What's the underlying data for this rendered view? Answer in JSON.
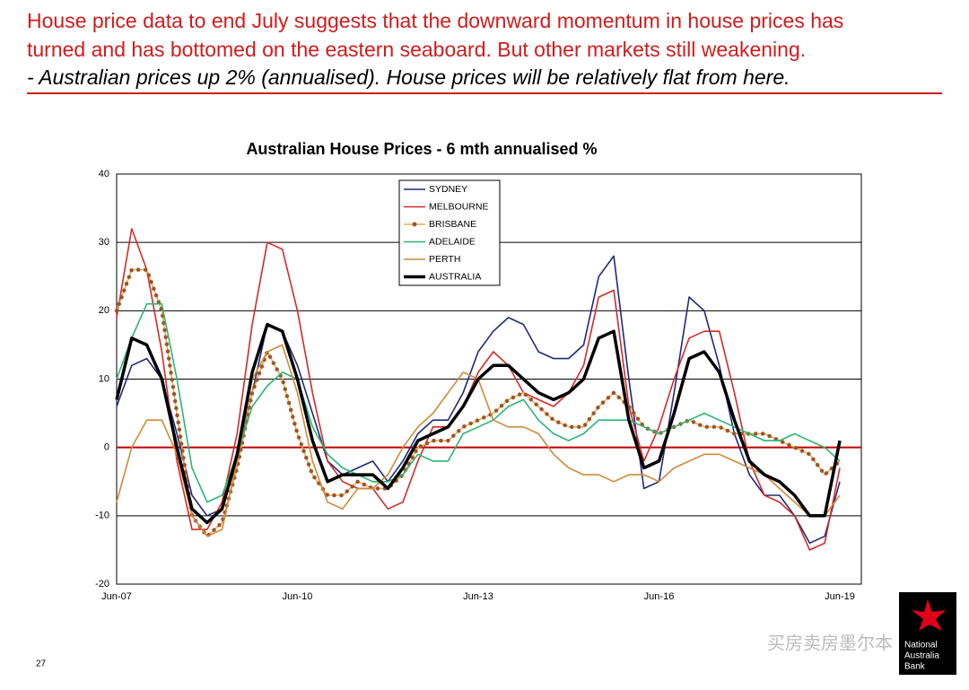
{
  "header": {
    "lines": [
      "House price data to end July suggests that the downward momentum in house prices has",
      "turned and has bottomed on the eastern seaboard.  But other markets still weakening."
    ],
    "subline": "- Australian prices up 2% (annualised). House prices will be relatively flat from here."
  },
  "page_number": "27",
  "watermark": "买房卖房墨尔本",
  "logo": [
    "National",
    "Australia",
    "Bank"
  ],
  "chart_data": {
    "type": "line",
    "title": "Australian House Prices - 6 mth annualised %",
    "categories": [
      "Jun-07",
      null,
      null,
      null,
      null,
      null,
      null,
      null,
      null,
      null,
      null,
      null,
      "Jun-10",
      null,
      null,
      null,
      null,
      null,
      null,
      null,
      null,
      null,
      null,
      null,
      "Jun-13",
      null,
      null,
      null,
      null,
      null,
      null,
      null,
      null,
      null,
      null,
      null,
      "Jun-16",
      null,
      null,
      null,
      null,
      null,
      null,
      null,
      null,
      null,
      null,
      null,
      "Jun-19"
    ],
    "series": [
      {
        "name": "SYDNEY",
        "color": "#1f2a7a",
        "values": [
          6,
          12,
          13,
          10,
          2,
          -7,
          -10,
          -9,
          -2,
          8,
          18,
          17,
          12,
          5,
          -2,
          -4,
          -3,
          -2,
          -5,
          -2,
          2,
          4,
          4,
          8,
          14,
          17,
          19,
          18,
          14,
          13,
          13,
          15,
          25,
          28,
          10,
          -6,
          -5,
          8,
          22,
          20,
          12,
          2,
          -4,
          -7,
          -7,
          -10,
          -14,
          -13,
          -5
        ]
      },
      {
        "name": "MELBOURNE",
        "color": "#d42a2a",
        "values": [
          19,
          32,
          26,
          14,
          -2,
          -12,
          -12,
          -8,
          2,
          18,
          30,
          29,
          20,
          8,
          -2,
          -5,
          -6,
          -6,
          -9,
          -8,
          -2,
          3,
          3,
          6,
          11,
          14,
          12,
          8,
          7,
          6,
          8,
          12,
          22,
          23,
          6,
          -2,
          3,
          10,
          16,
          17,
          17,
          8,
          -2,
          -7,
          -8,
          -10,
          -15,
          -14,
          -3
        ]
      },
      {
        "name": "BRISBANE",
        "color": "#d9b84a",
        "dot_color": "#a0522d",
        "style": "dotted",
        "values": [
          20,
          26,
          26,
          20,
          5,
          -10,
          -13,
          -11,
          -3,
          8,
          14,
          10,
          2,
          -4,
          -7,
          -7,
          -5,
          -6,
          -6,
          -4,
          0,
          1,
          1,
          3,
          4,
          5,
          7,
          8,
          6,
          4,
          3,
          3,
          6,
          8,
          6,
          3,
          2,
          3,
          4,
          3,
          3,
          2,
          2,
          2,
          1,
          0,
          -1,
          -4,
          -2
        ]
      },
      {
        "name": "ADELAIDE",
        "color": "#2bb673",
        "values": [
          10,
          16,
          21,
          21,
          10,
          -3,
          -8,
          -7,
          -1,
          6,
          9,
          11,
          10,
          3,
          -1,
          -3,
          -4,
          -5,
          -5,
          -4,
          -1,
          -2,
          -2,
          2,
          3,
          4,
          6,
          7,
          4,
          2,
          1,
          2,
          4,
          4,
          4,
          3,
          2,
          3,
          4,
          5,
          4,
          3,
          2,
          1,
          1,
          2,
          1,
          0,
          -2
        ]
      },
      {
        "name": "PERTH",
        "color": "#d08a3a",
        "values": [
          -8,
          0,
          4,
          4,
          -1,
          -10,
          -13,
          -12,
          -2,
          10,
          14,
          15,
          8,
          -2,
          -8,
          -9,
          -6,
          -6,
          -4,
          0,
          3,
          5,
          8,
          11,
          10,
          4,
          3,
          3,
          2,
          -1,
          -3,
          -4,
          -4,
          -5,
          -4,
          -4,
          -5,
          -3,
          -2,
          -1,
          -1,
          -2,
          -3,
          -4,
          -6,
          -8,
          -10,
          -10,
          -7
        ]
      },
      {
        "name": "AUSTRALIA",
        "color": "#000000",
        "linewidth": 3.5,
        "values": [
          7,
          16,
          15,
          10,
          0,
          -9,
          -11,
          -9,
          -1,
          11,
          18,
          17,
          10,
          1,
          -5,
          -4,
          -4,
          -4,
          -6,
          -3,
          1,
          2,
          3,
          6,
          10,
          12,
          12,
          10,
          8,
          7,
          8,
          10,
          16,
          17,
          4,
          -3,
          -2,
          5,
          13,
          14,
          11,
          4,
          -2,
          -4,
          -5,
          -7,
          -10,
          -10,
          1
        ]
      }
    ],
    "ylim": [
      -20,
      40
    ],
    "yticks": [
      -20,
      -10,
      0,
      10,
      20,
      30,
      40
    ],
    "grid": true,
    "grid_color": "#000000",
    "zero_line_color": "#c00000",
    "legend": "top-center"
  }
}
